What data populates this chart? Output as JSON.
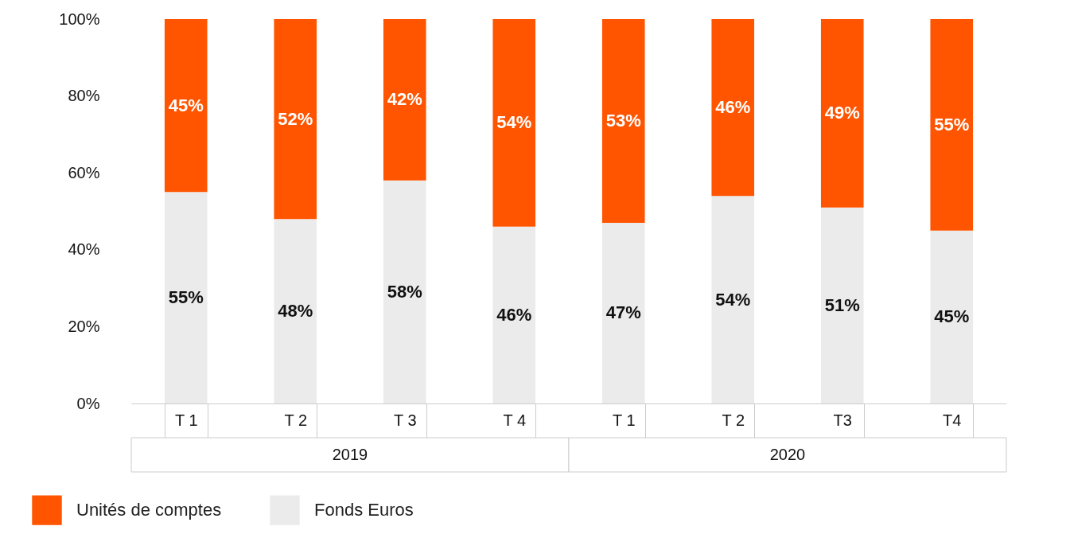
{
  "chart_data": {
    "type": "bar",
    "stacked": true,
    "categories": [
      "T 1",
      "T 2",
      "T 3",
      "T 4",
      "T 1",
      "T 2",
      "T3",
      "T4"
    ],
    "series": [
      {
        "name": "Fonds Euros",
        "color": "#ebebeb",
        "values": [
          55,
          48,
          58,
          46,
          47,
          54,
          51,
          45
        ],
        "value_labels": [
          "55%",
          "48%",
          "58%",
          "46%",
          "47%",
          "54%",
          "51%",
          "45%"
        ]
      },
      {
        "name": "Unités de comptes",
        "color": "#ff5500",
        "values": [
          45,
          52,
          42,
          54,
          53,
          46,
          49,
          55
        ],
        "value_labels": [
          "45%",
          "52%",
          "42%",
          "54%",
          "53%",
          "46%",
          "49%",
          "55%"
        ]
      }
    ],
    "ylim": [
      0,
      100
    ],
    "yticks": [
      {
        "value": 0,
        "label": "0%"
      },
      {
        "value": 20,
        "label": "20%"
      },
      {
        "value": 40,
        "label": "40%"
      },
      {
        "value": 60,
        "label": "60%"
      },
      {
        "value": 80,
        "label": "80%"
      },
      {
        "value": 100,
        "label": "100%"
      }
    ],
    "annotations": [
      "2019",
      "2020"
    ],
    "grid": false,
    "legend": "bottom"
  }
}
